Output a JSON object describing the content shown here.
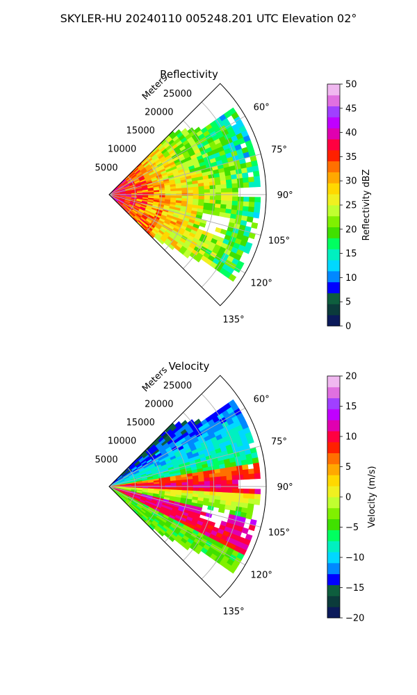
{
  "figure_title": "SKYLER-HU  20240110  005248.201 UTC Elevation 02°",
  "chart_data": [
    {
      "type": "heatmap",
      "title": "Reflectivity",
      "projection": "polar-sector",
      "theta_range_deg": [
        45,
        135
      ],
      "theta_ticks_deg": [
        60,
        75,
        90,
        105,
        120,
        135
      ],
      "theta_tick_labels": [
        "60°",
        "75°",
        "90°",
        "105°",
        "120°",
        "135°"
      ],
      "r_axis_label": "Meters",
      "r_max": 30000,
      "r_ticks": [
        5000,
        10000,
        15000,
        20000,
        25000
      ],
      "r_tick_labels": [
        "5000",
        "10000",
        "15000",
        "20000",
        "25000"
      ],
      "colorbar": {
        "label": "Reflectivity dBZ",
        "range": [
          0,
          50
        ],
        "ticks": [
          0,
          5,
          10,
          15,
          20,
          25,
          30,
          35,
          40,
          45,
          50
        ],
        "tick_labels": [
          "0",
          "5",
          "10",
          "15",
          "20",
          "25",
          "30",
          "35",
          "40",
          "45",
          "50"
        ],
        "colors": [
          "#0b1a5a",
          "#0b3b3b",
          "#0e5e3e",
          "#0000ff",
          "#0088ff",
          "#00d8ff",
          "#00f0c0",
          "#00ff60",
          "#40e000",
          "#80f000",
          "#c0ff30",
          "#f0f020",
          "#ffd800",
          "#ffa800",
          "#ff7000",
          "#ff2000",
          "#ff0040",
          "#e000b0",
          "#c000ff",
          "#a040ff",
          "#e070e0",
          "#f0b8f0"
        ]
      },
      "grid": true
    },
    {
      "type": "heatmap",
      "title": "Velocity",
      "projection": "polar-sector",
      "theta_range_deg": [
        45,
        135
      ],
      "theta_ticks_deg": [
        60,
        75,
        90,
        105,
        120,
        135
      ],
      "theta_tick_labels": [
        "60°",
        "75°",
        "90°",
        "105°",
        "120°",
        "135°"
      ],
      "r_axis_label": "Meters",
      "r_max": 30000,
      "r_ticks": [
        5000,
        10000,
        15000,
        20000,
        25000
      ],
      "r_tick_labels": [
        "5000",
        "10000",
        "15000",
        "20000",
        "25000"
      ],
      "colorbar": {
        "label": "Velocity (m/s)",
        "range": [
          -20,
          20
        ],
        "ticks": [
          -20,
          -15,
          -10,
          -5,
          0,
          5,
          10,
          15,
          20
        ],
        "tick_labels": [
          "−20",
          "−15",
          "−10",
          "−5",
          "0",
          "5",
          "10",
          "15",
          "20"
        ],
        "colors": [
          "#0b1a5a",
          "#0b3b3b",
          "#0e5e3e",
          "#0000ff",
          "#0088ff",
          "#00d8ff",
          "#00f0c0",
          "#00ff60",
          "#40e000",
          "#80f000",
          "#c0ff30",
          "#f0f020",
          "#ffd800",
          "#ffa800",
          "#ff7000",
          "#ff2000",
          "#ff0040",
          "#e000b0",
          "#c000ff",
          "#a040ff",
          "#e070e0",
          "#f0b8f0"
        ]
      },
      "grid": true
    }
  ]
}
